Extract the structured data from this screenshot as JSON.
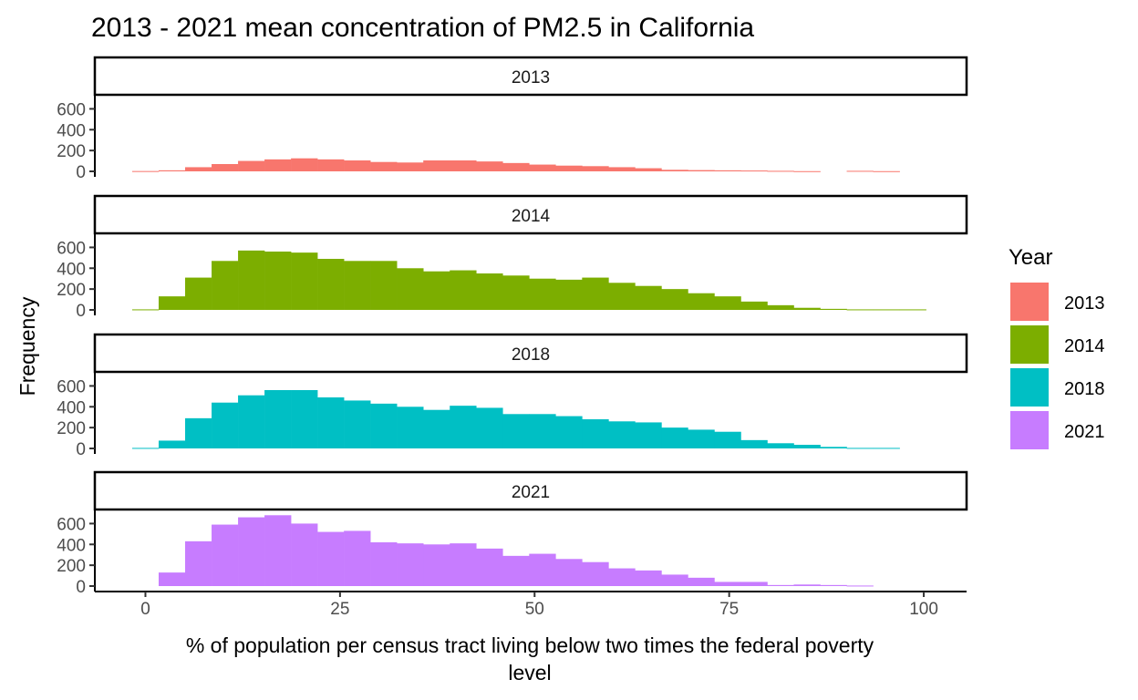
{
  "chart_data": {
    "type": "bar",
    "subtype": "histogram-faceted",
    "title": "2013 - 2021 mean concentration of PM2.5 in California",
    "xlabel": "% of population per census tract living below two times the federal poverty level",
    "ylabel": "Frequency",
    "xlim": [
      -6.5,
      105.5
    ],
    "ylim": [
      0,
      700
    ],
    "x_ticks": [
      0,
      25,
      50,
      75,
      100
    ],
    "y_ticks": [
      0,
      200,
      400,
      600
    ],
    "grid": false,
    "legend": {
      "title": "Year",
      "position": "right",
      "labels": [
        "2013",
        "2014",
        "2018",
        "2021"
      ]
    },
    "bin_width": 3.4,
    "bin_start": -1.7,
    "series": [
      {
        "name": "2013",
        "color": "#F8766D",
        "values": [
          3,
          10,
          40,
          70,
          100,
          115,
          125,
          115,
          105,
          90,
          85,
          105,
          105,
          95,
          80,
          65,
          55,
          50,
          40,
          30,
          15,
          12,
          10,
          8,
          5,
          2,
          0,
          5,
          2,
          0
        ]
      },
      {
        "name": "2014",
        "color": "#7CAE00",
        "values": [
          5,
          130,
          310,
          470,
          570,
          560,
          550,
          490,
          470,
          470,
          400,
          370,
          380,
          350,
          330,
          300,
          290,
          310,
          260,
          230,
          200,
          160,
          130,
          80,
          45,
          20,
          10,
          5,
          5,
          5
        ]
      },
      {
        "name": "2018",
        "color": "#00BFC4",
        "values": [
          5,
          75,
          290,
          440,
          510,
          560,
          560,
          490,
          460,
          430,
          400,
          370,
          410,
          390,
          330,
          330,
          310,
          280,
          260,
          250,
          200,
          180,
          160,
          80,
          50,
          35,
          15,
          5,
          5,
          0
        ]
      },
      {
        "name": "2021",
        "color": "#C77CFF",
        "values": [
          0,
          130,
          430,
          590,
          660,
          680,
          600,
          520,
          530,
          420,
          410,
          400,
          410,
          360,
          290,
          310,
          260,
          230,
          170,
          150,
          110,
          80,
          40,
          40,
          10,
          15,
          10,
          5,
          0,
          0
        ]
      }
    ]
  }
}
